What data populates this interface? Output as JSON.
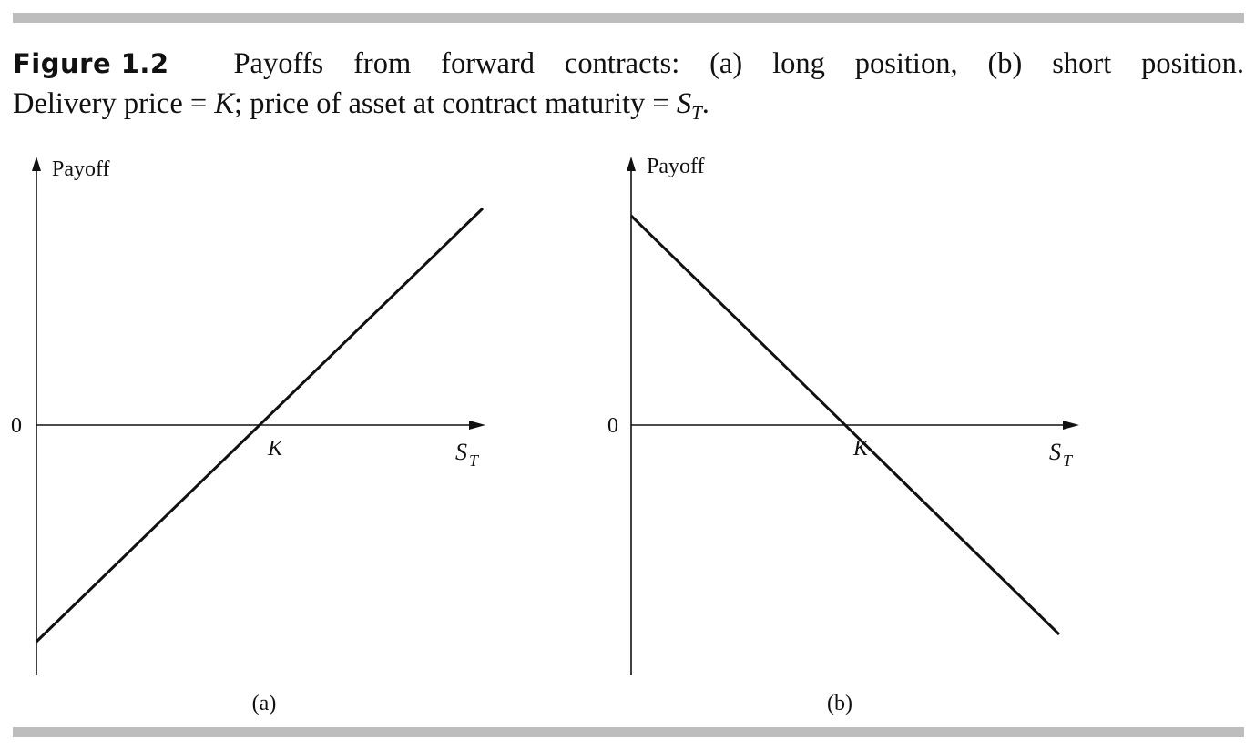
{
  "caption": {
    "label": "Figure 1.2",
    "line1_words": [
      "Payoffs",
      "from",
      "forward",
      "contracts:",
      "(a)",
      "long",
      "position,",
      "(b)",
      "short",
      "position."
    ],
    "line2_a": "Delivery price = ",
    "line2_K": "K",
    "line2_b": "; price of asset at contract maturity = ",
    "line2_S": "S",
    "line2_T": "T",
    "line2_end": "."
  },
  "chart_data": [
    {
      "type": "line",
      "panel_label": "(a)",
      "ylabel": "Payoff",
      "xlabel": "S",
      "xlabel_sub": "T",
      "zero_label": "0",
      "k_label": "K",
      "strike": 1,
      "xlim": [
        0,
        2.1
      ],
      "ylim": [
        -1.15,
        1.15
      ],
      "series": [
        {
          "points": [
            [
              0,
              -1.0
            ],
            [
              2.0,
              1.0
            ]
          ]
        }
      ]
    },
    {
      "type": "line",
      "panel_label": "(b)",
      "ylabel": "Payoff",
      "xlabel": "S",
      "xlabel_sub": "T",
      "zero_label": "0",
      "k_label": "K",
      "strike": 1,
      "xlim": [
        0,
        2.1
      ],
      "ylim": [
        -1.15,
        1.15
      ],
      "series": [
        {
          "points": [
            [
              0,
              1.0
            ],
            [
              2.0,
              -1.0
            ]
          ]
        }
      ]
    }
  ]
}
